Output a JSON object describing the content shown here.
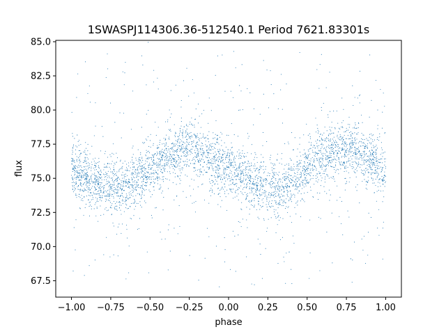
{
  "chart_data": {
    "type": "scatter",
    "title": "1SWASPJ114306.36-512540.1 Period 7621.83301s",
    "xlabel": "phase",
    "ylabel": "flux",
    "xlim": [
      -1.1,
      1.1
    ],
    "ylim": [
      66.3,
      85.1
    ],
    "xticks": [
      -1.0,
      -0.75,
      -0.5,
      -0.25,
      0.0,
      0.25,
      0.5,
      0.75,
      1.0
    ],
    "xtick_labels": [
      "−1.00",
      "−0.75",
      "−0.50",
      "−0.25",
      "0.00",
      "0.25",
      "0.50",
      "0.75",
      "1.00"
    ],
    "yticks": [
      67.5,
      70.0,
      72.5,
      75.0,
      77.5,
      80.0,
      82.5,
      85.0
    ],
    "ytick_labels": [
      "67.5",
      "70.0",
      "72.5",
      "75.0",
      "77.5",
      "80.0",
      "82.5",
      "85.0"
    ],
    "grid": false,
    "legend": "none",
    "marker_color": "#1f77b4",
    "series": [
      {
        "trend_x": [
          -1.0,
          -0.9,
          -0.8,
          -0.75,
          -0.7,
          -0.6,
          -0.5,
          -0.4,
          -0.3,
          -0.25,
          -0.2,
          -0.1,
          0.0,
          0.1,
          0.2,
          0.25,
          0.3,
          0.4,
          0.5,
          0.6,
          0.7,
          0.75,
          0.8,
          0.9,
          1.0
        ],
        "trend_y": [
          75.6,
          75.0,
          74.6,
          74.4,
          74.3,
          74.8,
          75.6,
          76.5,
          77.0,
          77.2,
          77.0,
          76.3,
          75.6,
          75.0,
          74.6,
          74.4,
          74.3,
          74.8,
          75.6,
          76.5,
          77.0,
          77.2,
          77.0,
          76.3,
          75.6
        ],
        "scatter_band": 1.3,
        "outlier_range": [
          67.0,
          84.5
        ]
      }
    ]
  }
}
